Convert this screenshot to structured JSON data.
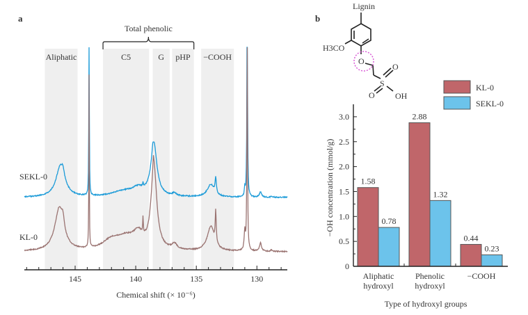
{
  "chart_data": [
    {
      "panel_label": "a",
      "type": "line",
      "title": "",
      "xlabel": "Chemical shift (× 10⁻⁶)",
      "xlim": [
        149.2,
        127.5
      ],
      "x_reversed": true,
      "xticks_major": [
        "145",
        "140",
        "135",
        "130"
      ],
      "xtick_values": [
        145,
        140,
        135,
        130
      ],
      "bracket_label": "Total phenolic",
      "bracket_range": [
        142.7,
        135.2
      ],
      "regions": [
        {
          "label": "Aliphatic",
          "range": [
            147.5,
            144.8
          ]
        },
        {
          "label": "C5",
          "range": [
            142.7,
            138.9
          ]
        },
        {
          "label": "G",
          "range": [
            138.6,
            137.2
          ]
        },
        {
          "label": "pHP",
          "range": [
            137.0,
            135.2
          ]
        },
        {
          "label": "−COOH",
          "range": [
            134.6,
            131.9
          ]
        }
      ],
      "series": [
        {
          "name": "SEKL-0",
          "color": "#1c9bd8",
          "peaks": [
            [
              146.2,
              45,
              0.45
            ],
            [
              146.0,
              8,
              0.1
            ],
            [
              143.85,
              320,
              0.02
            ],
            [
              141.0,
              8,
              1.2
            ],
            [
              139.8,
              10,
              0.6
            ],
            [
              139.4,
              5,
              0.03
            ],
            [
              138.5,
              75,
              0.3
            ],
            [
              138.6,
              6,
              0.05
            ],
            [
              136.8,
              4,
              0.2
            ],
            [
              133.8,
              18,
              0.35
            ],
            [
              133.4,
              22,
              0.06
            ],
            [
              131.0,
              12,
              0.04
            ],
            [
              130.8,
              320,
              0.03
            ],
            [
              129.7,
              8,
              0.1
            ],
            [
              128.8,
              2,
              0.05
            ]
          ]
        },
        {
          "name": "KL-0",
          "color": "#9a7371",
          "peaks": [
            [
              146.3,
              62,
              0.45
            ],
            [
              146.0,
              14,
              0.12
            ],
            [
              143.85,
              250,
              0.02
            ],
            [
              142.0,
              14,
              0.9
            ],
            [
              140.8,
              16,
              0.9
            ],
            [
              139.8,
              20,
              0.5
            ],
            [
              139.4,
              22,
              0.03
            ],
            [
              138.5,
              120,
              0.28
            ],
            [
              138.55,
              15,
              0.04
            ],
            [
              136.8,
              8,
              0.25
            ],
            [
              133.8,
              35,
              0.35
            ],
            [
              133.4,
              45,
              0.05
            ],
            [
              131.0,
              28,
              0.06
            ],
            [
              130.8,
              320,
              0.03
            ],
            [
              129.7,
              12,
              0.1
            ],
            [
              128.8,
              3,
              0.05
            ]
          ]
        }
      ]
    },
    {
      "panel_label": "b",
      "type": "bar",
      "xlabel": "Type of hydroxyl groups",
      "ylabel": "−OH concentration (mmol/g)",
      "ylim": [
        0,
        3.2
      ],
      "yticks": [
        "0",
        "0.5",
        "1.0",
        "1.5",
        "2.0",
        "2.5",
        "3.0"
      ],
      "ytick_values": [
        0,
        0.5,
        1.0,
        1.5,
        2.0,
        2.5,
        3.0
      ],
      "categories": [
        [
          "Aliphatic",
          "hydroxyl"
        ],
        [
          "Phenolic",
          "hydroxyl"
        ],
        [
          "−COOH",
          ""
        ]
      ],
      "series": [
        {
          "name": "KL-0",
          "color": "#c0666a",
          "values": [
            1.58,
            2.88,
            0.44
          ],
          "labels": [
            "1.58",
            "2.88",
            "0.44"
          ]
        },
        {
          "name": "SEKL-0",
          "color": "#6cc3eb",
          "values": [
            0.78,
            1.32,
            0.23
          ],
          "labels": [
            "0.78",
            "1.32",
            "0.23"
          ]
        }
      ],
      "legend_position": "top-right",
      "structure": {
        "top_label": "Lignin",
        "substituent": "H3CO",
        "ether_o": "O",
        "sulfur": "S",
        "oxygen": "O",
        "hydroxyl": "OH",
        "highlight_color": "#d95bd6"
      }
    }
  ]
}
